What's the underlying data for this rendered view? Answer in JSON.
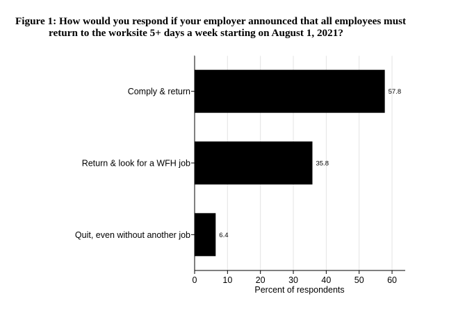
{
  "chart_data": {
    "type": "bar",
    "orientation": "horizontal",
    "title_line1": "Figure 1: How would you respond if your employer announced that all employees must",
    "title_line2": "return to the worksite 5+ days a week starting on August 1, 2021?",
    "categories": [
      "Comply & return",
      "Return & look for a WFH job",
      "Quit, even without another job"
    ],
    "values": [
      57.8,
      35.8,
      6.4
    ],
    "data_labels": [
      "57.8",
      "35.8",
      "6.4"
    ],
    "xlabel": "Percent of respondents",
    "ylabel": "",
    "xlim": [
      0,
      64
    ],
    "xticks": [
      "0",
      "10",
      "20",
      "30",
      "40",
      "50",
      "60"
    ],
    "grid": true,
    "bar_color": "#000000",
    "grid_color": "#e3e3e3"
  }
}
